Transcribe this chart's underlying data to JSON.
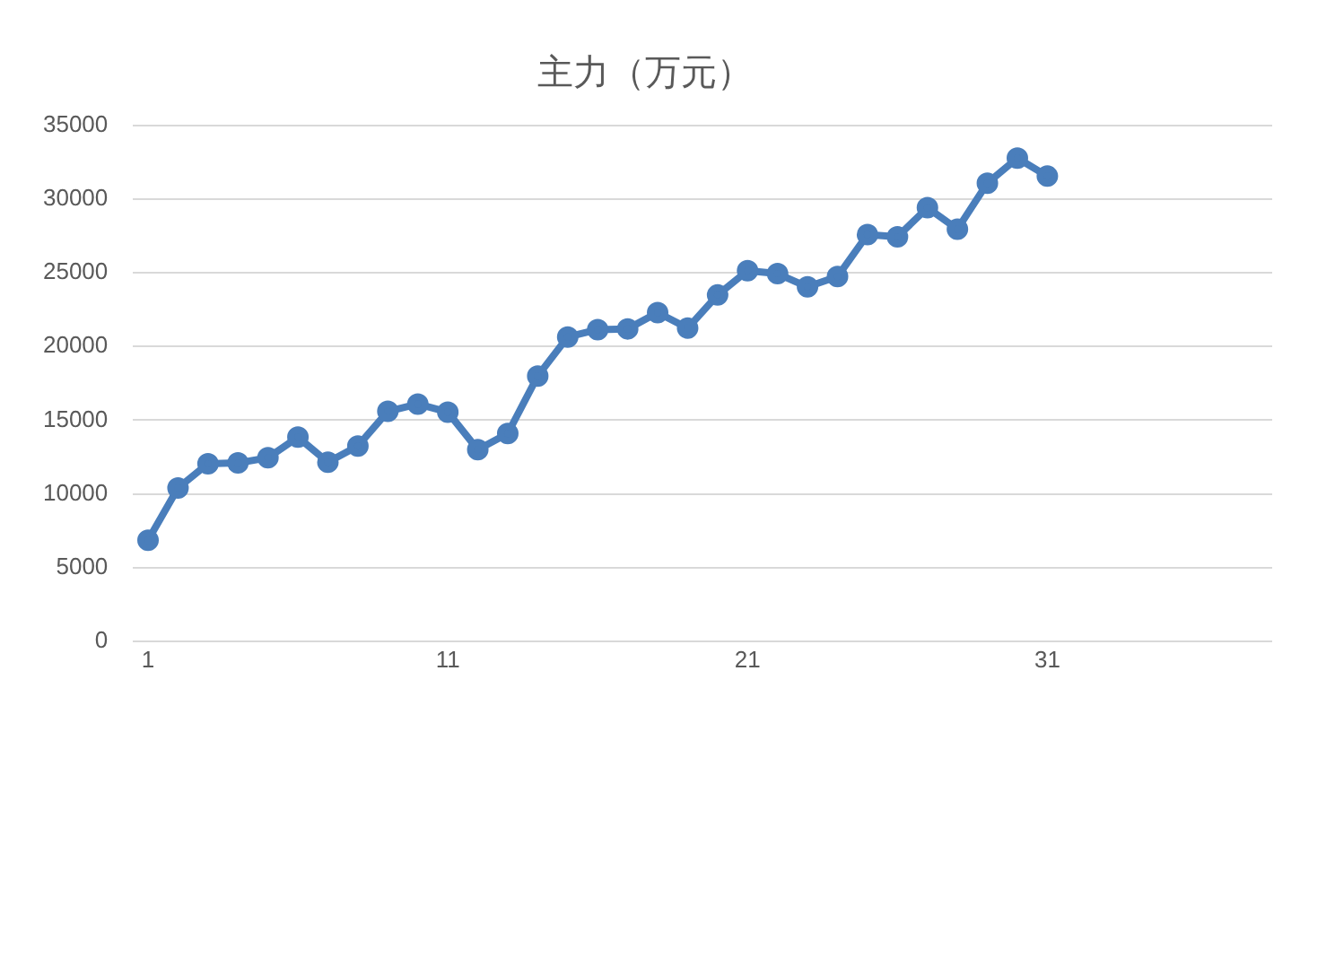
{
  "chart_data": {
    "type": "line",
    "title": "主力（万元）",
    "x": [
      1,
      2,
      3,
      4,
      5,
      6,
      7,
      8,
      9,
      10,
      11,
      12,
      13,
      14,
      15,
      16,
      17,
      18,
      19,
      20,
      21,
      22,
      23,
      24,
      25,
      26,
      27,
      28,
      29,
      30,
      31
    ],
    "series": [
      {
        "color": "#4a7ebb",
        "values": [
          6850,
          10400,
          12050,
          12100,
          12450,
          13850,
          12150,
          13250,
          15600,
          16100,
          15550,
          13000,
          14100,
          18000,
          20650,
          21150,
          21200,
          22300,
          21250,
          23500,
          25150,
          24950,
          24050,
          24750,
          27600,
          27450,
          29425,
          27970,
          31094,
          32790,
          31568
        ]
      }
    ],
    "xlim": [
      0.5,
      38.5
    ],
    "xticks": [
      1,
      11,
      21,
      31
    ],
    "ylim": [
      0,
      35000
    ],
    "yticks": [
      0,
      5000,
      10000,
      15000,
      20000,
      25000,
      30000,
      35000
    ],
    "grid": "y",
    "legend": false,
    "marker": "circle",
    "line_style": "solid"
  }
}
